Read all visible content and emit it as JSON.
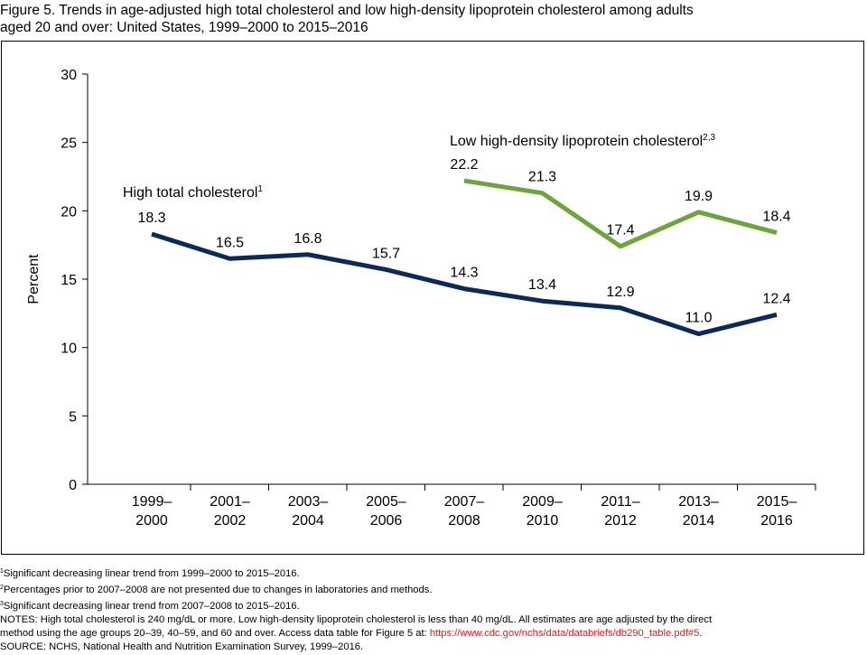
{
  "title": {
    "line1": "Figure 5. Trends in age-adjusted high total cholesterol and low high-density lipoprotein cholesterol among adults",
    "line2": "aged 20 and over: United States, 1999–2000 to 2015–2016"
  },
  "chart_data": {
    "type": "line",
    "title": "Trends in age-adjusted high total cholesterol and low high-density lipoprotein cholesterol among adults aged 20 and over: United States, 1999–2000 to 2015–2016",
    "xlabel": "",
    "ylabel": "Percent",
    "ylim": [
      0,
      30
    ],
    "yticks": [
      0,
      5,
      10,
      15,
      20,
      25,
      30
    ],
    "grid": false,
    "categories": [
      [
        "1999–",
        "2000"
      ],
      [
        "2001–",
        "2002"
      ],
      [
        "2003–",
        "2004"
      ],
      [
        "2005–",
        "2006"
      ],
      [
        "2007–",
        "2008"
      ],
      [
        "2009–",
        "2010"
      ],
      [
        "2011–",
        "2012"
      ],
      [
        "2013–",
        "2014"
      ],
      [
        "2015–",
        "2016"
      ]
    ],
    "series": [
      {
        "name": "High total cholesterol",
        "superscript": "1",
        "color": "#0b2a5c",
        "values": [
          18.3,
          16.5,
          16.8,
          15.7,
          14.3,
          13.4,
          12.9,
          11.0,
          12.4
        ],
        "labels": [
          "18.3",
          "16.5",
          "16.8",
          "15.7",
          "14.3",
          "13.4",
          "12.9",
          "11.0",
          "12.4"
        ]
      },
      {
        "name": "Low high-density lipoprotein cholesterol",
        "superscript": "2,3",
        "color": "#6ea43b",
        "values": [
          null,
          null,
          null,
          null,
          22.2,
          21.3,
          17.4,
          19.9,
          18.4
        ],
        "labels": [
          null,
          null,
          null,
          null,
          "22.2",
          "21.3",
          "17.4",
          "19.9",
          "18.4"
        ]
      }
    ]
  },
  "notes": {
    "fn1_sup": "1",
    "fn1": "Significant decreasing linear trend from 1999–2000 to 2015–2016.",
    "fn2_sup": "2",
    "fn2": "Percentages prior to 2007–2008 are not presented due to changes in laboratories and methods.",
    "fn3_sup": "3",
    "fn3": "Significant decreasing linear trend from 2007–2008 to 2015–2016.",
    "notes_line1": "NOTES: High total cholesterol is 240 mg/dL or more. Low high-density lipoprotein cholesterol is less than 40 mg/dL. All estimates are age adjusted by the direct",
    "notes_line2": "method using the age groups 20–39, 40–59, and 60 and over. Access data table for Figure 5 at: ",
    "notes_link": "https://www.cdc.gov/nchs/data/databriefs/db290_table.pdf#5",
    "notes_line2_end": ".",
    "source": "SOURCE: NCHS, National Health and Nutrition Examination Survey, 1999–2016."
  }
}
